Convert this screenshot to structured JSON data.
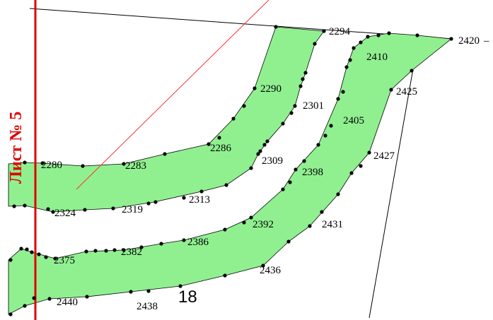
{
  "map": {
    "sheet_label": "Лист № 5",
    "parcel_number": "18",
    "colors": {
      "parcel_fill": "#90f090",
      "sheet_line": "#e00000",
      "thin_red_line": "#ff3030",
      "boundary_line": "#000000",
      "vertex_point": "#000000"
    },
    "point_labels": {
      "p2280": "2280",
      "p2283": "2283",
      "p2286": "2286",
      "p2290": "2290",
      "p2294": "2294",
      "p2301": "2301",
      "p2309": "2309",
      "p2313": "2313",
      "p2319": "2319",
      "p2324": "2324",
      "p2375": "2375",
      "p2382": "2382",
      "p2386": "2386",
      "p2392": "2392",
      "p2398": "2398",
      "p2405": "2405",
      "p2410": "2410",
      "p2420": "2420",
      "p2425": "2425",
      "p2427": "2427",
      "p2431": "2431",
      "p2436": "2436",
      "p2438": "2438",
      "p2440": "2440"
    }
  }
}
